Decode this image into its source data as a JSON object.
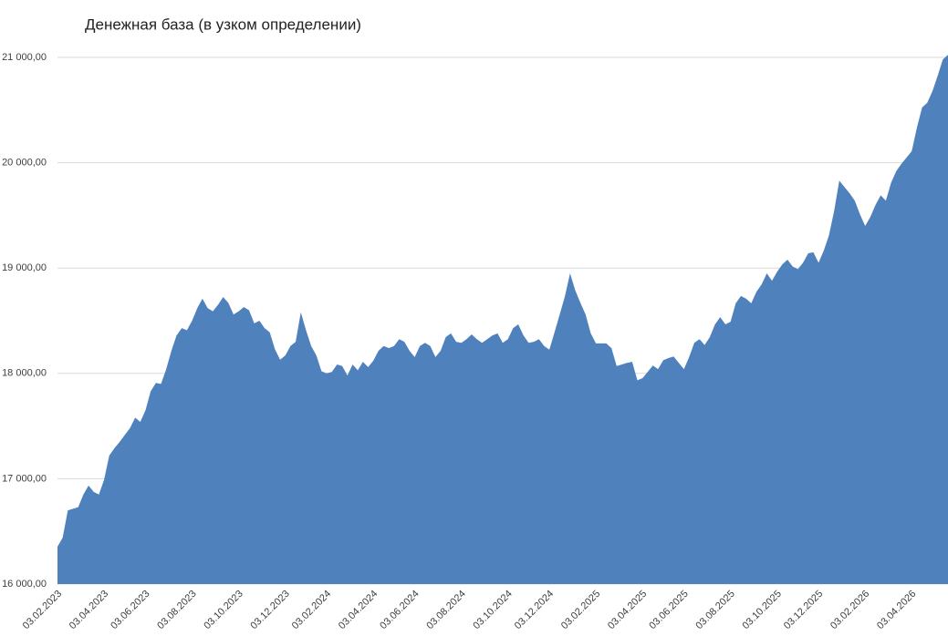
{
  "chart_data": {
    "type": "area",
    "title": "Денежная база (в узком определении)",
    "categories": [
      "03.02.2023",
      null,
      null,
      null,
      null,
      null,
      null,
      null,
      null,
      "03.04.2023",
      null,
      null,
      null,
      null,
      null,
      null,
      null,
      "03.06.2023",
      null,
      null,
      null,
      null,
      null,
      null,
      null,
      null,
      "03.08.2023",
      null,
      null,
      null,
      null,
      null,
      null,
      null,
      null,
      "03.10.2023",
      null,
      null,
      null,
      null,
      null,
      null,
      null,
      null,
      "03.12.2023",
      null,
      null,
      null,
      null,
      null,
      null,
      null,
      "03.02.2024",
      null,
      null,
      null,
      null,
      null,
      null,
      null,
      null,
      "03.04.2024",
      null,
      null,
      null,
      null,
      null,
      null,
      null,
      "03.06.2024",
      null,
      null,
      null,
      null,
      null,
      null,
      null,
      null,
      "03.08.2024",
      null,
      null,
      null,
      null,
      null,
      null,
      null,
      null,
      "03.10.2024",
      null,
      null,
      null,
      null,
      null,
      null,
      null,
      "03.12.2024",
      null,
      null,
      null,
      null,
      null,
      null,
      null,
      null,
      "03.02.2025",
      null,
      null,
      null,
      null,
      null,
      null,
      null,
      null,
      "03.04.2025",
      null,
      null,
      null,
      null,
      null,
      null,
      null,
      "03.06.2025",
      null,
      null,
      null,
      null,
      null,
      null,
      null,
      null,
      "03.08.2025",
      null,
      null,
      null,
      null,
      null,
      null,
      null,
      null,
      "03.10.2025",
      null,
      null,
      null,
      null,
      null,
      null,
      null,
      "03.12.2025",
      null,
      null,
      null,
      null,
      null,
      null,
      null,
      null,
      "03.02.2026",
      null,
      null,
      null,
      null,
      null,
      null,
      null,
      null,
      "03.04.2026",
      null,
      null,
      null,
      null,
      null,
      null,
      null
    ],
    "values": [
      16355,
      16440,
      16700,
      16715,
      16730,
      16850,
      16935,
      16875,
      16850,
      16990,
      17220,
      17290,
      17350,
      17415,
      17480,
      17580,
      17540,
      17650,
      17830,
      17910,
      17900,
      18040,
      18215,
      18360,
      18430,
      18410,
      18500,
      18620,
      18710,
      18620,
      18590,
      18650,
      18725,
      18670,
      18560,
      18590,
      18630,
      18600,
      18475,
      18500,
      18430,
      18390,
      18230,
      18130,
      18170,
      18260,
      18300,
      18580,
      18410,
      18260,
      18170,
      18020,
      18000,
      18015,
      18085,
      18070,
      17980,
      18085,
      18030,
      18110,
      18060,
      18120,
      18215,
      18260,
      18240,
      18260,
      18325,
      18300,
      18215,
      18155,
      18260,
      18290,
      18260,
      18155,
      18215,
      18345,
      18380,
      18300,
      18290,
      18325,
      18370,
      18325,
      18290,
      18325,
      18360,
      18380,
      18290,
      18325,
      18430,
      18465,
      18360,
      18290,
      18300,
      18325,
      18260,
      18225,
      18390,
      18560,
      18730,
      18950,
      18790,
      18670,
      18560,
      18380,
      18285,
      18285,
      18285,
      18240,
      18070,
      18085,
      18100,
      18110,
      17935,
      17955,
      18015,
      18075,
      18040,
      18125,
      18145,
      18160,
      18100,
      18040,
      18155,
      18290,
      18325,
      18270,
      18345,
      18465,
      18535,
      18465,
      18490,
      18665,
      18735,
      18710,
      18665,
      18775,
      18845,
      18950,
      18880,
      18965,
      19035,
      19080,
      19015,
      18990,
      19050,
      19140,
      19150,
      19050,
      19165,
      19310,
      19540,
      19830,
      19770,
      19710,
      19640,
      19510,
      19400,
      19485,
      19600,
      19690,
      19640,
      19810,
      19920,
      19990,
      20050,
      20110,
      20335,
      20525,
      20570,
      20680,
      20825,
      20980,
      21025
    ],
    "color": "#4f81bd",
    "ylim": [
      16000,
      21000
    ],
    "yticks": [
      {
        "value": 16000,
        "label": "16 000,00"
      },
      {
        "value": 17000,
        "label": "17 000,00"
      },
      {
        "value": 18000,
        "label": "18 000,00"
      },
      {
        "value": 19000,
        "label": "19 000,00"
      },
      {
        "value": 20000,
        "label": "20 000,00"
      },
      {
        "value": 21000,
        "label": "21 000,00"
      }
    ],
    "grid": true
  }
}
